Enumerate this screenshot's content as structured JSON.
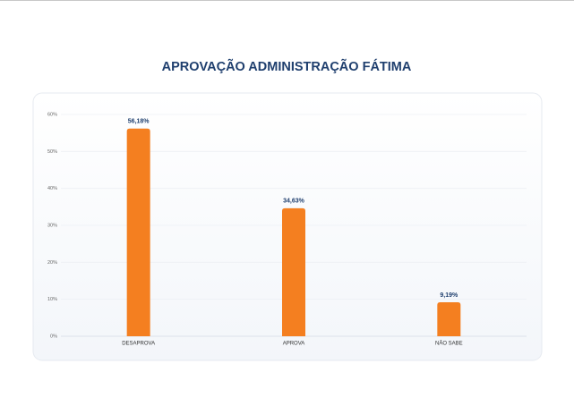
{
  "chart_data": {
    "type": "bar",
    "title": "APROVAÇÃO ADMINISTRAÇÃO FÁTIMA",
    "categories": [
      "DESAPROVA",
      "APROVA",
      "NÃO SABE"
    ],
    "values": [
      56.18,
      34.63,
      9.19
    ],
    "value_labels": [
      "56,18%",
      "34,63%",
      "9,19%"
    ],
    "color": "#f47f20",
    "ylim": [
      0,
      60
    ],
    "yticks": [
      {
        "value": 0,
        "label": "0%"
      },
      {
        "value": 10,
        "label": "10%"
      },
      {
        "value": 20,
        "label": "20%"
      },
      {
        "value": 30,
        "label": "30%"
      },
      {
        "value": 40,
        "label": "40%"
      },
      {
        "value": 50,
        "label": "50%"
      },
      {
        "value": 60,
        "label": "60%"
      }
    ],
    "grid": true
  }
}
